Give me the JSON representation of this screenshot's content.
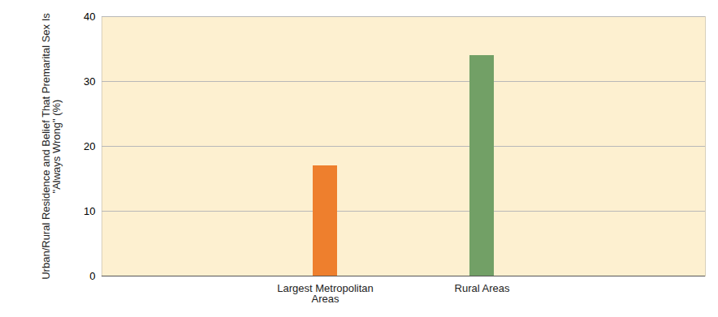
{
  "chart_data": {
    "type": "bar",
    "y_label": "Urban/Rural Residence and Belief That Premarital Sex Is \"Always Wrong\" (%)",
    "categories": [
      "Largest Metropolitan Areas",
      "Rural Areas"
    ],
    "values": [
      17,
      34
    ],
    "colors": [
      "#ee7f2d",
      "#72a066"
    ],
    "ylim": [
      0,
      40
    ],
    "yticks": [
      0,
      10,
      20,
      30,
      40
    ],
    "grid": true
  }
}
